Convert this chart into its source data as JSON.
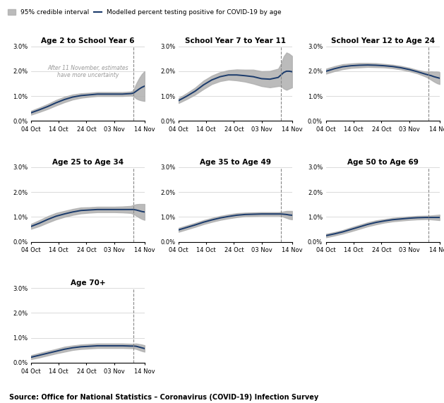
{
  "titles": [
    "Age 2 to School Year 6",
    "School Year 7 to Year 11",
    "School Year 12 to Age 24",
    "Age 25 to Age 34",
    "Age 35 to Age 49",
    "Age 50 to Age 69",
    "Age 70+"
  ],
  "x_labels": [
    "04 Oct",
    "14 Oct",
    "24 Oct",
    "03 Nov",
    "14 Nov"
  ],
  "x_ticks": [
    0,
    10,
    20,
    30,
    41
  ],
  "dashed_line_x": 37,
  "line_color": "#1a3a6b",
  "band_color": "#b0b0b0",
  "background_color": "#ffffff",
  "grid_color": "#cccccc",
  "annotation_text": "After 11 November, estimates\nhave more uncertainty",
  "annotation_color": "#999999",
  "source_text": "Source: Office for National Statistics – Coronavirus (COVID-19) Infection Survey",
  "legend_band_label": "95% credible interval",
  "legend_line_label": "Modelled percent testing positive for COVID-19 by age",
  "ylim": [
    0,
    0.03
  ],
  "yticks": [
    0,
    0.01,
    0.02,
    0.03
  ],
  "yticklabels": [
    "0.0%",
    "1.0%",
    "2.0%",
    "3.0%"
  ],
  "series": {
    "Age 2 to School Year 6": {
      "x": [
        0,
        3,
        6,
        9,
        12,
        15,
        18,
        21,
        24,
        27,
        30,
        33,
        36,
        37,
        38,
        39,
        40,
        41
      ],
      "y": [
        0.0033,
        0.0045,
        0.0058,
        0.0073,
        0.0086,
        0.0096,
        0.0102,
        0.0105,
        0.0108,
        0.0108,
        0.0108,
        0.0108,
        0.011,
        0.0112,
        0.012,
        0.0128,
        0.0135,
        0.014
      ],
      "y_low": [
        0.0025,
        0.0036,
        0.0048,
        0.0062,
        0.0075,
        0.0086,
        0.0093,
        0.0097,
        0.01,
        0.01,
        0.01,
        0.01,
        0.0102,
        0.01,
        0.009,
        0.0085,
        0.0082,
        0.008
      ],
      "y_high": [
        0.0041,
        0.0054,
        0.0068,
        0.0084,
        0.0097,
        0.0106,
        0.0111,
        0.0113,
        0.0116,
        0.0116,
        0.0116,
        0.0116,
        0.0118,
        0.0124,
        0.015,
        0.0171,
        0.0188,
        0.02
      ]
    },
    "School Year 7 to Year 11": {
      "x": [
        0,
        3,
        6,
        9,
        12,
        15,
        18,
        21,
        24,
        27,
        30,
        33,
        36,
        37,
        38,
        39,
        40,
        41
      ],
      "y": [
        0.0082,
        0.01,
        0.012,
        0.0145,
        0.0165,
        0.0178,
        0.0185,
        0.0185,
        0.0182,
        0.0178,
        0.017,
        0.0168,
        0.0175,
        0.0185,
        0.0195,
        0.02,
        0.02,
        0.0198
      ],
      "y_low": [
        0.0072,
        0.0088,
        0.0106,
        0.0128,
        0.0148,
        0.016,
        0.0166,
        0.0163,
        0.0158,
        0.015,
        0.014,
        0.0135,
        0.014,
        0.014,
        0.013,
        0.0125,
        0.013,
        0.0135
      ],
      "y_high": [
        0.0092,
        0.0112,
        0.0134,
        0.0162,
        0.0182,
        0.0196,
        0.0204,
        0.0207,
        0.0206,
        0.0206,
        0.02,
        0.0201,
        0.021,
        0.023,
        0.026,
        0.0275,
        0.027,
        0.0261
      ]
    },
    "School Year 12 to Age 24": {
      "x": [
        0,
        3,
        6,
        9,
        12,
        15,
        18,
        21,
        24,
        27,
        30,
        33,
        36,
        37,
        38,
        39,
        40,
        41
      ],
      "y": [
        0.02,
        0.021,
        0.0218,
        0.0222,
        0.0224,
        0.0225,
        0.0224,
        0.0222,
        0.0219,
        0.0214,
        0.0207,
        0.0198,
        0.0188,
        0.0185,
        0.0182,
        0.0178,
        0.0175,
        0.0172
      ],
      "y_low": [
        0.019,
        0.02,
        0.0208,
        0.0213,
        0.0215,
        0.0217,
        0.0216,
        0.0215,
        0.0212,
        0.0207,
        0.02,
        0.0191,
        0.0178,
        0.0172,
        0.0165,
        0.0158,
        0.0152,
        0.0148
      ],
      "y_high": [
        0.021,
        0.022,
        0.0228,
        0.0231,
        0.0233,
        0.0233,
        0.0232,
        0.0229,
        0.0226,
        0.0221,
        0.0214,
        0.0205,
        0.0198,
        0.0198,
        0.0199,
        0.0198,
        0.0198,
        0.0196
      ]
    },
    "Age 25 to Age 34": {
      "x": [
        0,
        3,
        6,
        9,
        12,
        15,
        18,
        21,
        24,
        27,
        30,
        33,
        36,
        37,
        38,
        39,
        40,
        41
      ],
      "y": [
        0.0062,
        0.0075,
        0.009,
        0.0103,
        0.0112,
        0.012,
        0.0126,
        0.0128,
        0.013,
        0.013,
        0.013,
        0.013,
        0.013,
        0.013,
        0.0128,
        0.0125,
        0.0122,
        0.012
      ],
      "y_low": [
        0.0052,
        0.0063,
        0.0077,
        0.009,
        0.01,
        0.0108,
        0.0114,
        0.0117,
        0.0119,
        0.0119,
        0.0119,
        0.0118,
        0.0116,
        0.0112,
        0.0105,
        0.0098,
        0.0092,
        0.0088
      ],
      "y_high": [
        0.0072,
        0.0087,
        0.0103,
        0.0116,
        0.0124,
        0.0132,
        0.0138,
        0.0139,
        0.0141,
        0.0141,
        0.0141,
        0.0142,
        0.0144,
        0.0148,
        0.0151,
        0.0152,
        0.0152,
        0.0152
      ]
    },
    "Age 35 to Age 49": {
      "x": [
        0,
        3,
        6,
        9,
        12,
        15,
        18,
        21,
        24,
        27,
        30,
        33,
        36,
        37,
        38,
        39,
        40,
        41
      ],
      "y": [
        0.0048,
        0.0058,
        0.0068,
        0.0079,
        0.0088,
        0.0096,
        0.0102,
        0.0107,
        0.011,
        0.0111,
        0.0112,
        0.0112,
        0.0112,
        0.0112,
        0.0111,
        0.011,
        0.0108,
        0.0107
      ],
      "y_low": [
        0.004,
        0.005,
        0.006,
        0.0071,
        0.008,
        0.0088,
        0.0094,
        0.0099,
        0.0103,
        0.0104,
        0.0105,
        0.0105,
        0.0105,
        0.0104,
        0.01,
        0.0096,
        0.0092,
        0.009
      ],
      "y_high": [
        0.0056,
        0.0066,
        0.0076,
        0.0087,
        0.0096,
        0.0104,
        0.011,
        0.0115,
        0.0117,
        0.0118,
        0.0119,
        0.0119,
        0.0119,
        0.012,
        0.0122,
        0.0124,
        0.0124,
        0.0124
      ]
    },
    "Age 50 to Age 69": {
      "x": [
        0,
        3,
        6,
        9,
        12,
        15,
        18,
        21,
        24,
        27,
        30,
        33,
        36,
        37,
        38,
        39,
        40,
        41
      ],
      "y": [
        0.0025,
        0.0032,
        0.004,
        0.005,
        0.006,
        0.007,
        0.0078,
        0.0084,
        0.0089,
        0.0092,
        0.0095,
        0.0097,
        0.0098,
        0.0098,
        0.0098,
        0.0098,
        0.0098,
        0.0098
      ],
      "y_low": [
        0.0018,
        0.0025,
        0.0033,
        0.0042,
        0.0052,
        0.0062,
        0.007,
        0.0077,
        0.0082,
        0.0085,
        0.0088,
        0.009,
        0.0091,
        0.0091,
        0.009,
        0.0089,
        0.0088,
        0.0087
      ],
      "y_high": [
        0.0032,
        0.0039,
        0.0047,
        0.0058,
        0.0068,
        0.0078,
        0.0086,
        0.0091,
        0.0096,
        0.0099,
        0.0102,
        0.0104,
        0.0105,
        0.0105,
        0.0106,
        0.0107,
        0.0108,
        0.0109
      ]
    },
    "Age 70+": {
      "x": [
        0,
        3,
        6,
        9,
        12,
        15,
        18,
        21,
        24,
        27,
        30,
        33,
        36,
        37,
        38,
        39,
        40,
        41
      ],
      "y": [
        0.0022,
        0.003,
        0.0038,
        0.0046,
        0.0054,
        0.006,
        0.0064,
        0.0066,
        0.0068,
        0.0068,
        0.0068,
        0.0068,
        0.0067,
        0.0067,
        0.0066,
        0.0063,
        0.006,
        0.0057
      ],
      "y_low": [
        0.0014,
        0.0021,
        0.0029,
        0.0037,
        0.0044,
        0.0051,
        0.0055,
        0.0057,
        0.0059,
        0.0059,
        0.0059,
        0.0059,
        0.0058,
        0.0058,
        0.0055,
        0.0051,
        0.0047,
        0.0044
      ],
      "y_high": [
        0.003,
        0.0039,
        0.0047,
        0.0055,
        0.0064,
        0.0069,
        0.0073,
        0.0075,
        0.0077,
        0.0077,
        0.0077,
        0.0077,
        0.0076,
        0.0076,
        0.0077,
        0.0075,
        0.0073,
        0.007
      ]
    }
  }
}
